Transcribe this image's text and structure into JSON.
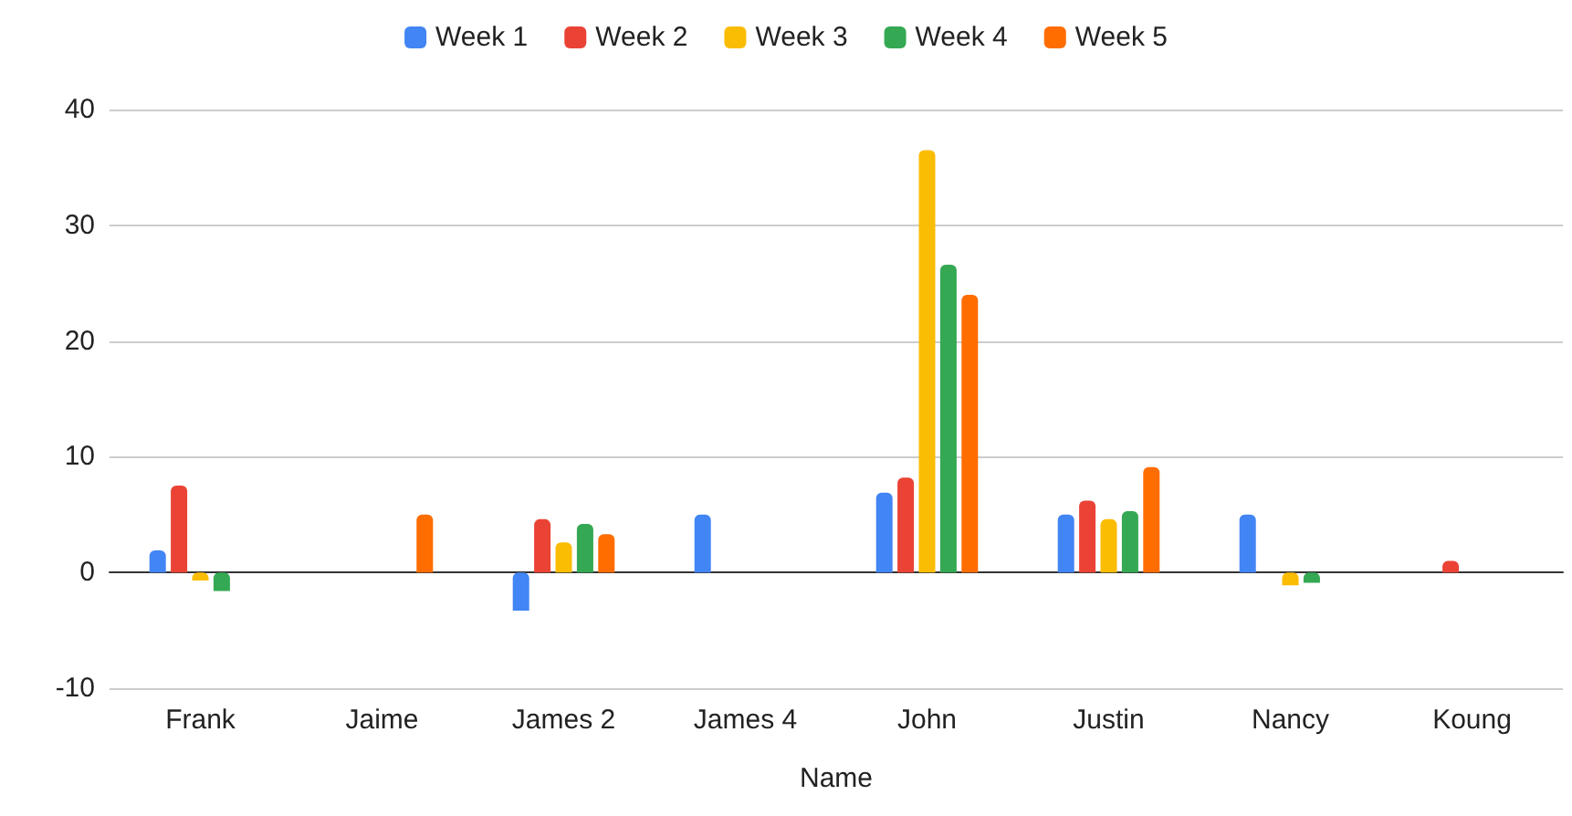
{
  "chart_data": {
    "type": "bar",
    "xlabel": "Name",
    "categories": [
      "Frank",
      "Jaime",
      "James 2",
      "James 4",
      "John",
      "Justin",
      "Nancy",
      "Koung"
    ],
    "series": [
      {
        "name": "Week 1",
        "color": "#4285f4",
        "values": [
          1.9,
          null,
          -3.3,
          5.0,
          6.9,
          5.0,
          5.0,
          null
        ]
      },
      {
        "name": "Week 2",
        "color": "#ea4335",
        "values": [
          7.5,
          null,
          4.6,
          null,
          8.2,
          6.2,
          null,
          1.0
        ]
      },
      {
        "name": "Week 3",
        "color": "#fbbc04",
        "values": [
          -0.7,
          null,
          2.6,
          null,
          36.5,
          4.6,
          -1.1,
          null
        ]
      },
      {
        "name": "Week 4",
        "color": "#34a853",
        "values": [
          -1.6,
          null,
          4.2,
          null,
          26.6,
          5.3,
          -0.9,
          null
        ]
      },
      {
        "name": "Week 5",
        "color": "#ff6d01",
        "values": [
          null,
          5.0,
          3.3,
          null,
          24.0,
          9.1,
          null,
          null
        ]
      }
    ],
    "ylim": [
      -10,
      40
    ],
    "yticks": [
      -10,
      0,
      10,
      20,
      30,
      40
    ],
    "grid": "y",
    "legend": "top"
  }
}
